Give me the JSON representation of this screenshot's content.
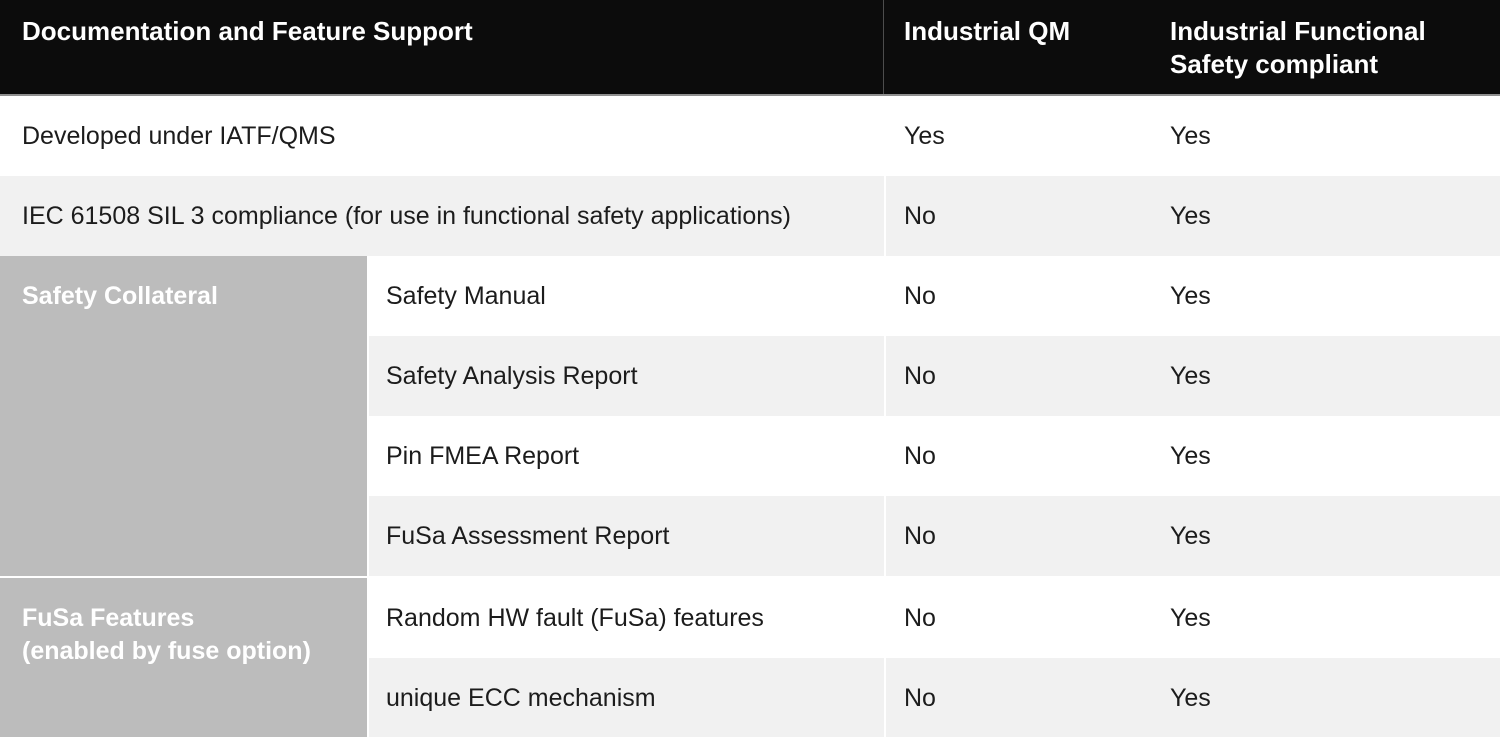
{
  "header": {
    "feature_col": "Documentation and Feature Support",
    "qm_col": "Industrial QM",
    "fusa_col": "Industrial Functional Safety compliant"
  },
  "rows": [
    {
      "label": "Developed under IATF/QMS",
      "qm": "Yes",
      "fusa": "Yes"
    },
    {
      "label": "IEC 61508 SIL 3 compliance (for use in functional safety applications)",
      "qm": "No",
      "fusa": "Yes"
    }
  ],
  "sections": [
    {
      "group": "Safety Collateral",
      "rows": [
        {
          "label": "Safety Manual",
          "qm": "No",
          "fusa": "Yes"
        },
        {
          "label": "Safety Analysis Report",
          "qm": "No",
          "fusa": "Yes"
        },
        {
          "label": "Pin FMEA Report",
          "qm": "No",
          "fusa": "Yes"
        },
        {
          "label": "FuSa Assessment Report",
          "qm": "No",
          "fusa": "Yes"
        }
      ]
    },
    {
      "group": "FuSa Features\n(enabled by fuse option)",
      "rows": [
        {
          "label": "Random HW fault (FuSa) features",
          "qm": "No",
          "fusa": "Yes"
        },
        {
          "label": "unique ECC mechanism",
          "qm": "No",
          "fusa": "Yes"
        }
      ]
    }
  ],
  "colors": {
    "header_bg": "#0c0c0c",
    "header_text": "#ffffff",
    "header_divider": "#4d4d4d",
    "row_alt_bg": "#f1f1f1",
    "group_cell_bg": "#bcbcbc",
    "body_text": "#1c1c1c"
  }
}
